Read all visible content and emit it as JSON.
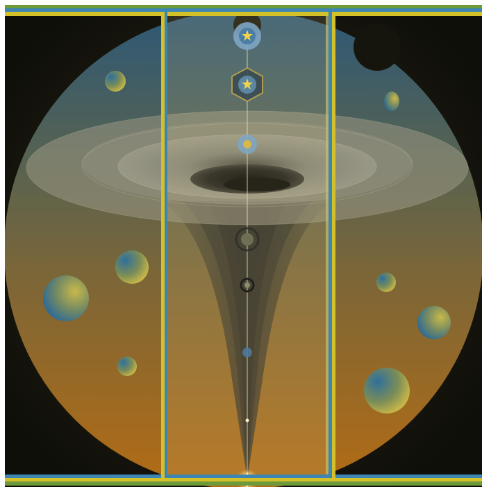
{
  "artwork": {
    "colors": {
      "background": "#ffffff",
      "frame_outer": "#1a1a10",
      "frame_edge_yellow": "#d4c12a",
      "frame_edge_blue": "#3d86b3",
      "frame_edge_green": "#6f9a3a",
      "sky_top": "#2e5c78",
      "sky_mid": "#6a6a52",
      "sky_bottom": "#b56f19",
      "disc_shade": "#5d6a60",
      "funnel": "#2b2d2a",
      "beam": "#d7cf9b",
      "star": "#fff7d0"
    },
    "icons": [
      "mandala-orb-icon",
      "ornate-hexagon-orb-icon",
      "ringed-orb-icon",
      "sparkle-star-icon",
      "planet-sphere-icon",
      "crescent-moon-icon"
    ]
  }
}
